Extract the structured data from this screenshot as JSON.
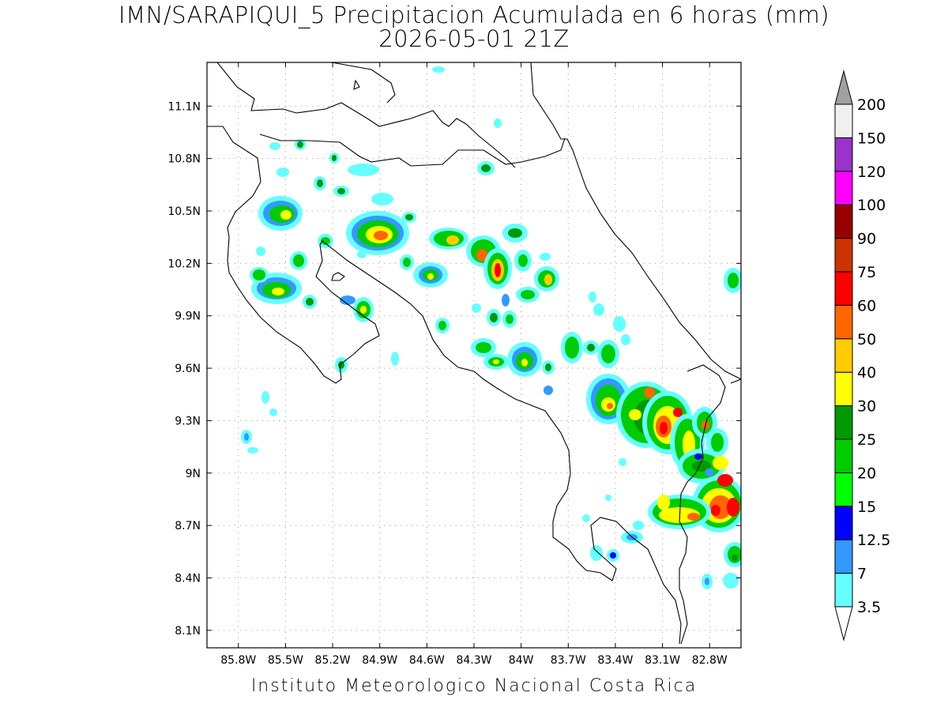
{
  "header": {
    "title_line1": "IMN/SARAPIQUI_5 Precipitacion Acumulada en 6 horas (mm)",
    "title_line2": "2026-05-01 21Z"
  },
  "footer": {
    "credit": "Instituto Meteorologico Nacional Costa Rica"
  },
  "map": {
    "lon_range": [
      -86.0,
      -82.6
    ],
    "lat_range": [
      8.0,
      11.35
    ],
    "grid": true,
    "lat_ticks": [
      "11.1N",
      "10.8N",
      "10.5N",
      "10.2N",
      "9.9N",
      "9.6N",
      "9.3N",
      "9N",
      "8.7N",
      "8.4N",
      "8.1N"
    ],
    "lon_ticks": [
      "85.8W",
      "85.5W",
      "85.2W",
      "84.9W",
      "84.6W",
      "84.3W",
      "84W",
      "83.7W",
      "83.4W",
      "83.1W",
      "82.8W"
    ]
  },
  "colorbar": {
    "levels": [
      "3.5",
      "7",
      "12.5",
      "15",
      "20",
      "25",
      "30",
      "40",
      "50",
      "60",
      "75",
      "90",
      "100",
      "120",
      "150",
      "200"
    ],
    "colors": [
      "#66ffff",
      "#3399ff",
      "#0000ff",
      "#00ff00",
      "#00cc00",
      "#009900",
      "#ffff00",
      "#ffcc00",
      "#ff6600",
      "#ff0000",
      "#cc3300",
      "#990000",
      "#ff00ff",
      "#9933cc",
      "#f0f0f0",
      "#a0a0a0"
    ]
  }
}
